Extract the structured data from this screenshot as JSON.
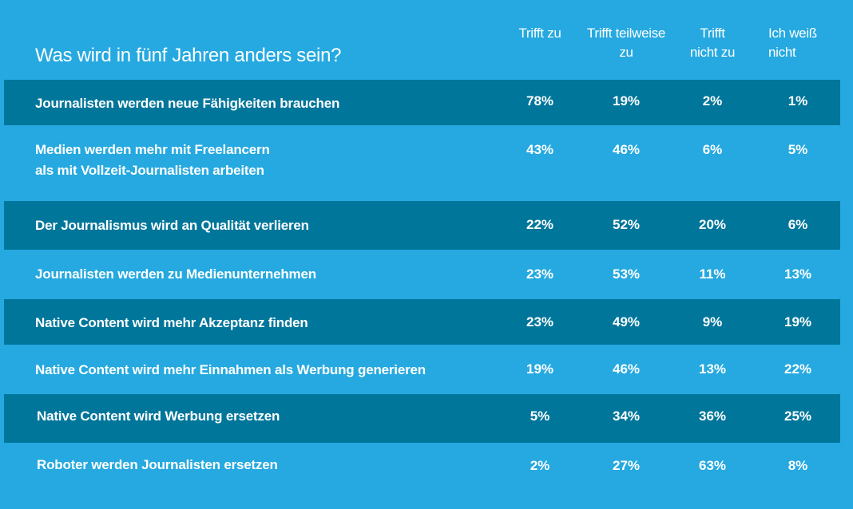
{
  "colors": {
    "background": "#25A9E0",
    "band": "#00769B",
    "text": "#FFFFFF"
  },
  "chart_data": {
    "type": "table",
    "title": "Was wird in fünf Jahren anders sein?",
    "columns": [
      {
        "line1": "Trifft zu",
        "line2": ""
      },
      {
        "line1": "Trifft teilweise",
        "line2": "zu"
      },
      {
        "line1": "Trifft",
        "line2": "nicht zu"
      },
      {
        "line1": "Ich weiß",
        "line2": "nicht"
      }
    ],
    "rows": [
      {
        "line1": "Journalisten werden neue Fähigkeiten brauchen",
        "line2": "",
        "values": [
          "78%",
          "19%",
          "2%",
          "1%"
        ]
      },
      {
        "line1": "Medien werden mehr mit Freelancern",
        "line2": "als mit Vollzeit-Journalisten arbeiten",
        "values": [
          "43%",
          "46%",
          "6%",
          "5%"
        ]
      },
      {
        "line1": "Der Journalismus wird an Qualität verlieren",
        "line2": "",
        "values": [
          "22%",
          "52%",
          "20%",
          "6%"
        ]
      },
      {
        "line1": "Journalisten werden zu Medienunternehmen",
        "line2": "",
        "values": [
          "23%",
          "53%",
          "11%",
          "13%"
        ]
      },
      {
        "line1": "Native Content wird mehr Akzeptanz finden",
        "line2": "",
        "values": [
          "23%",
          "49%",
          "9%",
          "19%"
        ]
      },
      {
        "line1": "Native Content wird mehr Einnahmen als Werbung generieren",
        "line2": "",
        "values": [
          "19%",
          "46%",
          "13%",
          "22%"
        ]
      },
      {
        "line1": "Native Content wird Werbung ersetzen",
        "line2": "",
        "values": [
          "5%",
          "34%",
          "36%",
          "25%"
        ]
      },
      {
        "line1": "Roboter werden Journalisten ersetzen",
        "line2": "",
        "values": [
          "2%",
          "27%",
          "63%",
          "8%"
        ]
      }
    ]
  }
}
